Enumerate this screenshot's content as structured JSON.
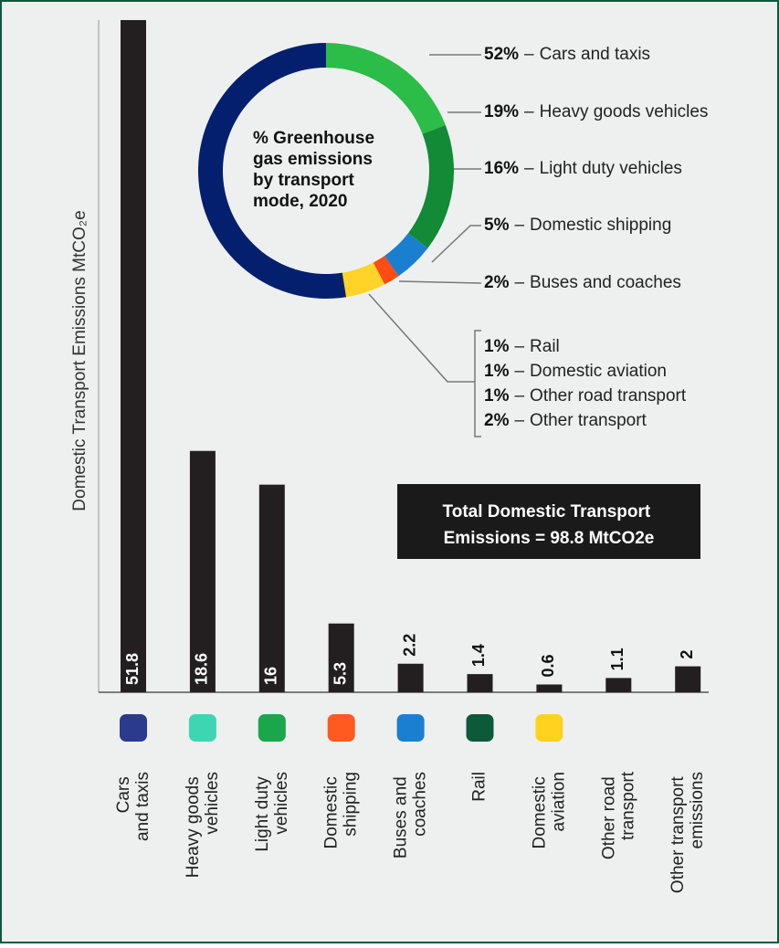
{
  "chart_data": [
    {
      "type": "bar",
      "y_label": "Domestic Transport Emissions MtCO₂e",
      "categories": [
        "Cars\nand taxis",
        "Heavy goods\nvehicles",
        "Light duty\nvehicles",
        "Domestic\nshipping",
        "Buses and\ncoaches",
        "Rail",
        "Domestic\naviation",
        "Other road\ntransport",
        "Other transport\nemissions"
      ],
      "values": [
        51.8,
        18.6,
        16,
        5.3,
        2.2,
        1.4,
        0.6,
        1.1,
        2
      ],
      "color": "#231f20",
      "ylim": [
        0,
        51.8
      ],
      "annotation": "Total Domestic Transport\nEmissions  = 98.8 MtCO2e"
    },
    {
      "type": "donut",
      "title": "% Greenhouse\ngas emissions\nby transport\nmode, 2020",
      "separator": "–",
      "categories": [
        "Cars and taxis",
        "Heavy goods vehicles",
        "Light duty vehicles",
        "Domestic shipping",
        "Buses and coaches",
        "Rail",
        "Domestic aviation",
        "Other road transport",
        "Other transport"
      ],
      "values": [
        52,
        19,
        16,
        5,
        2,
        1,
        1,
        1,
        2
      ],
      "value_labels": [
        "52%",
        "19%",
        "16%",
        "5%",
        "2%",
        "1%",
        "1%",
        "1%",
        "2%"
      ],
      "colors": [
        "#031f6e",
        "#2bbd48",
        "#128a36",
        "#1b7fd0",
        "#ff4b14",
        "#ffd426",
        "#ffd426",
        "#ffd426",
        "#ffd426"
      ]
    }
  ]
}
